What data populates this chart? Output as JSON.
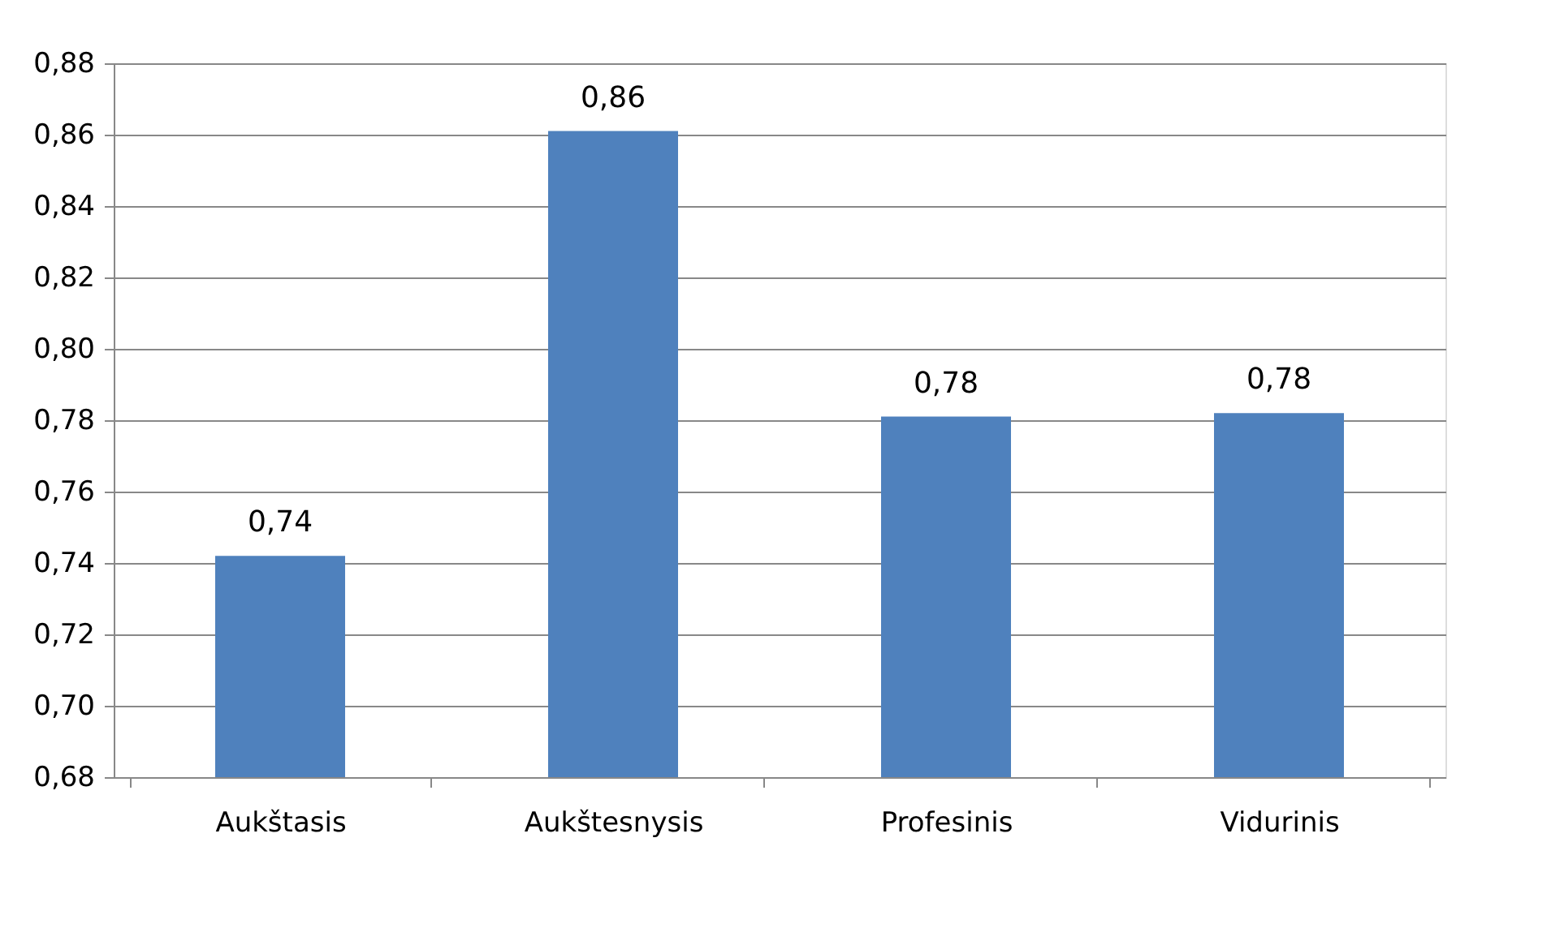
{
  "chart_data": {
    "type": "bar",
    "categories": [
      "Aukštasis",
      "Aukštesnysis",
      "Profesinis",
      "Vidurinis"
    ],
    "values": [
      0.742,
      0.861,
      0.781,
      0.782
    ],
    "value_labels": [
      "0,74",
      "0,86",
      "0,78",
      "0,78"
    ],
    "color": "#4f81bd",
    "ylim": [
      0.68,
      0.88
    ],
    "yticks": [
      {
        "value": 0.68,
        "label": "0,68"
      },
      {
        "value": 0.7,
        "label": "0,70"
      },
      {
        "value": 0.72,
        "label": "0,72"
      },
      {
        "value": 0.74,
        "label": "0,74"
      },
      {
        "value": 0.76,
        "label": "0,76"
      },
      {
        "value": 0.78,
        "label": "0,78"
      },
      {
        "value": 0.8,
        "label": "0,80"
      },
      {
        "value": 0.82,
        "label": "0,82"
      },
      {
        "value": 0.84,
        "label": "0,84"
      },
      {
        "value": 0.86,
        "label": "0,86"
      },
      {
        "value": 0.88,
        "label": "0,88"
      }
    ],
    "grid": "y"
  }
}
